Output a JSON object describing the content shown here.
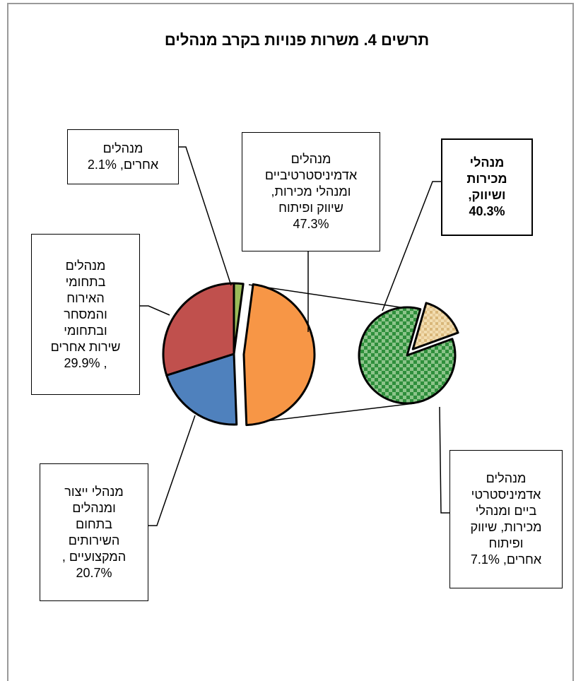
{
  "chart_data": {
    "type": "bar-of-pie",
    "title": "תרשים 4. משרות פנויות בקרב מנהלים",
    "main_pie": [
      {
        "label": "מנהלים\nאחרים, 2.1%",
        "value": 2.1,
        "color": "#9bbb59"
      },
      {
        "label": "מנהלים\nאדמיניסטרטיביים\nומנהלי מכירות,\nשיווק ופיתוח\n47.3%",
        "value": 47.3,
        "color": "#f79646",
        "exploded": true
      },
      {
        "label": "מנהלי ייצור\nומנהלים\nבתחום\nהשירותים\nהמקצועיים ,\n20.7%",
        "value": 20.7,
        "color": "#4f81bd"
      },
      {
        "label": "מנהלים\nבתחומי\nהאירוח\nוהמסחר\nובתחומי\nשירות אחרים\n, 29.9%",
        "value": 29.9,
        "color": "#c0504d"
      }
    ],
    "secondary_pie": [
      {
        "label": "מנהלי\nמכירות\nושיווק,\n40.3%",
        "value": 40.3,
        "color": "#2e8b3a",
        "pattern": "checker-green"
      },
      {
        "label": "מנהלים\nאדמיניסטרטי\nביים ומנהלי\nמכירות, שיווק\nופיתוח\nאחרים, 7.1%",
        "value": 7.1,
        "color": "#e8c98f",
        "pattern": "weave-tan"
      }
    ]
  }
}
